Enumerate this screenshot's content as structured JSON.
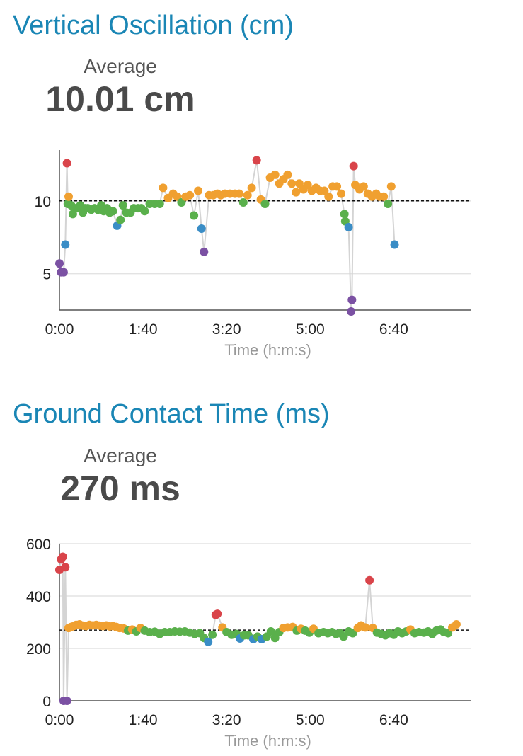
{
  "charts": [
    {
      "title": "Vertical Oscillation (cm)",
      "average_label": "Average",
      "average_value": "10.01 cm"
    },
    {
      "title": "Ground Contact Time (ms)",
      "average_label": "Average",
      "average_value": "270 ms"
    }
  ],
  "colors": {
    "title": "#1a86b5",
    "purple": "#7b51a3",
    "blue": "#3a8dc6",
    "green": "#5ab04c",
    "orange": "#f0a030",
    "red": "#d9444a",
    "line": "#d4d4d4",
    "grid": "#e3e3e3"
  },
  "chart_data": [
    {
      "type": "scatter",
      "title": "Vertical Oscillation (cm)",
      "xlabel": "Time (h:m:s)",
      "ylabel": "",
      "x_ticks": [
        "0:00",
        "1:40",
        "3:20",
        "5:00",
        "6:40"
      ],
      "x_tick_seconds": [
        0,
        100,
        200,
        300,
        400
      ],
      "y_ticks": [
        5,
        10
      ],
      "xlim": [
        0,
        492
      ],
      "ylim": [
        2.5,
        13.5
      ],
      "grid": "horizontal",
      "reference_line": 10.01,
      "x_unit": "seconds",
      "points": [
        [
          0,
          5.7,
          "purple"
        ],
        [
          2,
          5.1,
          "purple"
        ],
        [
          5,
          5.1,
          "purple"
        ],
        [
          7,
          7.0,
          "blue"
        ],
        [
          9,
          12.6,
          "red"
        ],
        [
          10,
          9.8,
          "green"
        ],
        [
          11,
          10.3,
          "orange"
        ],
        [
          14,
          9.7,
          "green"
        ],
        [
          16,
          9.1,
          "green"
        ],
        [
          19,
          9.5,
          "green"
        ],
        [
          22,
          9.5,
          "green"
        ],
        [
          25,
          9.7,
          "green"
        ],
        [
          28,
          9.2,
          "green"
        ],
        [
          31,
          9.5,
          "green"
        ],
        [
          34,
          9.5,
          "green"
        ],
        [
          38,
          9.4,
          "green"
        ],
        [
          42,
          9.5,
          "green"
        ],
        [
          46,
          9.4,
          "green"
        ],
        [
          50,
          9.7,
          "green"
        ],
        [
          53,
          9.3,
          "green"
        ],
        [
          57,
          9.5,
          "green"
        ],
        [
          60,
          9.2,
          "green"
        ],
        [
          64,
          9.3,
          "green"
        ],
        [
          69,
          8.3,
          "blue"
        ],
        [
          73,
          8.7,
          "green"
        ],
        [
          76,
          9.7,
          "green"
        ],
        [
          80,
          9.2,
          "green"
        ],
        [
          85,
          9.2,
          "green"
        ],
        [
          89,
          9.5,
          "green"
        ],
        [
          94,
          9.5,
          "green"
        ],
        [
          98,
          9.5,
          "green"
        ],
        [
          102,
          9.3,
          "green"
        ],
        [
          108,
          9.8,
          "green"
        ],
        [
          114,
          9.8,
          "green"
        ],
        [
          120,
          9.8,
          "green"
        ],
        [
          124,
          10.9,
          "orange"
        ],
        [
          130,
          10.2,
          "orange"
        ],
        [
          136,
          10.5,
          "orange"
        ],
        [
          141,
          10.3,
          "orange"
        ],
        [
          146,
          9.9,
          "green"
        ],
        [
          151,
          10.3,
          "orange"
        ],
        [
          156,
          10.4,
          "orange"
        ],
        [
          161,
          9.0,
          "green"
        ],
        [
          166,
          10.7,
          "orange"
        ],
        [
          170,
          8.1,
          "blue"
        ],
        [
          173,
          6.5,
          "purple"
        ],
        [
          179,
          10.4,
          "orange"
        ],
        [
          184,
          10.4,
          "orange"
        ],
        [
          189,
          10.5,
          "orange"
        ],
        [
          193,
          10.4,
          "orange"
        ],
        [
          198,
          10.5,
          "orange"
        ],
        [
          204,
          10.5,
          "orange"
        ],
        [
          210,
          10.5,
          "orange"
        ],
        [
          215,
          10.5,
          "orange"
        ],
        [
          220,
          9.9,
          "green"
        ],
        [
          225,
          10.4,
          "orange"
        ],
        [
          230,
          10.9,
          "orange"
        ],
        [
          236,
          12.8,
          "red"
        ],
        [
          241,
          10.1,
          "orange"
        ],
        [
          246,
          9.8,
          "green"
        ],
        [
          252,
          11.6,
          "orange"
        ],
        [
          258,
          11.8,
          "orange"
        ],
        [
          263,
          11.2,
          "orange"
        ],
        [
          268,
          11.5,
          "orange"
        ],
        [
          273,
          11.8,
          "orange"
        ],
        [
          278,
          11.2,
          "orange"
        ],
        [
          283,
          10.6,
          "orange"
        ],
        [
          287,
          11.2,
          "orange"
        ],
        [
          292,
          10.8,
          "orange"
        ],
        [
          297,
          11.1,
          "orange"
        ],
        [
          302,
          10.7,
          "orange"
        ],
        [
          307,
          10.9,
          "orange"
        ],
        [
          312,
          10.7,
          "orange"
        ],
        [
          317,
          10.7,
          "orange"
        ],
        [
          322,
          10.3,
          "orange"
        ],
        [
          327,
          11.0,
          "orange"
        ],
        [
          332,
          11.0,
          "orange"
        ],
        [
          337,
          10.5,
          "orange"
        ],
        [
          341,
          9.1,
          "green"
        ],
        [
          342,
          8.6,
          "green"
        ],
        [
          346,
          8.2,
          "blue"
        ],
        [
          349,
          2.4,
          "purple"
        ],
        [
          350,
          3.2,
          "purple"
        ],
        [
          352,
          12.4,
          "red"
        ],
        [
          354,
          11.1,
          "orange"
        ],
        [
          359,
          10.8,
          "orange"
        ],
        [
          364,
          11.0,
          "orange"
        ],
        [
          369,
          10.5,
          "orange"
        ],
        [
          374,
          10.3,
          "orange"
        ],
        [
          379,
          10.5,
          "orange"
        ],
        [
          383,
          10.3,
          "orange"
        ],
        [
          388,
          10.3,
          "orange"
        ],
        [
          393,
          9.8,
          "green"
        ],
        [
          397,
          11.0,
          "orange"
        ],
        [
          401,
          7.0,
          "blue"
        ]
      ]
    },
    {
      "type": "scatter",
      "title": "Ground Contact Time (ms)",
      "xlabel": "Time (h:m:s)",
      "ylabel": "",
      "x_ticks": [
        "0:00",
        "1:40",
        "3:20",
        "5:00",
        "6:40"
      ],
      "x_tick_seconds": [
        0,
        100,
        200,
        300,
        400
      ],
      "y_ticks": [
        0,
        200,
        400,
        600
      ],
      "xlim": [
        0,
        492
      ],
      "ylim": [
        0,
        600
      ],
      "grid": "horizontal",
      "reference_line": 270,
      "x_unit": "seconds",
      "points": [
        [
          0,
          500,
          "red"
        ],
        [
          2,
          540,
          "red"
        ],
        [
          4,
          550,
          "red"
        ],
        [
          5,
          0,
          "purple"
        ],
        [
          7,
          510,
          "red"
        ],
        [
          9,
          0,
          "purple"
        ],
        [
          11,
          278,
          "orange"
        ],
        [
          14,
          282,
          "orange"
        ],
        [
          17,
          285,
          "orange"
        ],
        [
          20,
          290,
          "orange"
        ],
        [
          24,
          292,
          "orange"
        ],
        [
          28,
          287,
          "orange"
        ],
        [
          32,
          285,
          "orange"
        ],
        [
          36,
          290,
          "orange"
        ],
        [
          40,
          288,
          "orange"
        ],
        [
          44,
          290,
          "orange"
        ],
        [
          48,
          287,
          "orange"
        ],
        [
          52,
          285,
          "orange"
        ],
        [
          56,
          288,
          "orange"
        ],
        [
          60,
          284,
          "orange"
        ],
        [
          64,
          285,
          "orange"
        ],
        [
          68,
          282,
          "orange"
        ],
        [
          72,
          278,
          "orange"
        ],
        [
          77,
          276,
          "orange"
        ],
        [
          82,
          268,
          "green"
        ],
        [
          87,
          272,
          "orange"
        ],
        [
          92,
          265,
          "green"
        ],
        [
          97,
          278,
          "orange"
        ],
        [
          102,
          268,
          "green"
        ],
        [
          108,
          262,
          "green"
        ],
        [
          114,
          264,
          "green"
        ],
        [
          120,
          255,
          "green"
        ],
        [
          126,
          262,
          "green"
        ],
        [
          132,
          262,
          "green"
        ],
        [
          138,
          265,
          "green"
        ],
        [
          144,
          264,
          "green"
        ],
        [
          150,
          265,
          "green"
        ],
        [
          156,
          260,
          "green"
        ],
        [
          162,
          255,
          "green"
        ],
        [
          168,
          258,
          "green"
        ],
        [
          173,
          240,
          "green"
        ],
        [
          178,
          225,
          "blue"
        ],
        [
          183,
          252,
          "green"
        ],
        [
          187,
          328,
          "red"
        ],
        [
          189,
          332,
          "red"
        ],
        [
          195,
          280,
          "orange"
        ],
        [
          200,
          262,
          "green"
        ],
        [
          206,
          252,
          "green"
        ],
        [
          212,
          255,
          "green"
        ],
        [
          216,
          238,
          "blue"
        ],
        [
          221,
          250,
          "green"
        ],
        [
          226,
          250,
          "green"
        ],
        [
          232,
          235,
          "blue"
        ],
        [
          237,
          245,
          "green"
        ],
        [
          242,
          235,
          "blue"
        ],
        [
          248,
          245,
          "green"
        ],
        [
          253,
          265,
          "green"
        ],
        [
          258,
          240,
          "green"
        ],
        [
          263,
          262,
          "green"
        ],
        [
          268,
          278,
          "orange"
        ],
        [
          273,
          280,
          "orange"
        ],
        [
          279,
          282,
          "orange"
        ],
        [
          284,
          268,
          "green"
        ],
        [
          289,
          275,
          "orange"
        ],
        [
          294,
          268,
          "green"
        ],
        [
          299,
          260,
          "green"
        ],
        [
          304,
          275,
          "orange"
        ],
        [
          310,
          258,
          "green"
        ],
        [
          316,
          262,
          "green"
        ],
        [
          321,
          258,
          "green"
        ],
        [
          326,
          262,
          "green"
        ],
        [
          331,
          255,
          "green"
        ],
        [
          336,
          258,
          "green"
        ],
        [
          340,
          245,
          "green"
        ],
        [
          346,
          265,
          "green"
        ],
        [
          351,
          258,
          "green"
        ],
        [
          357,
          278,
          "orange"
        ],
        [
          361,
          288,
          "orange"
        ],
        [
          366,
          280,
          "orange"
        ],
        [
          371,
          460,
          "red"
        ],
        [
          375,
          278,
          "orange"
        ],
        [
          380,
          260,
          "green"
        ],
        [
          385,
          255,
          "green"
        ],
        [
          390,
          250,
          "green"
        ],
        [
          395,
          258,
          "green"
        ],
        [
          400,
          252,
          "green"
        ],
        [
          405,
          265,
          "green"
        ],
        [
          410,
          258,
          "green"
        ],
        [
          415,
          265,
          "green"
        ],
        [
          420,
          272,
          "orange"
        ],
        [
          425,
          258,
          "green"
        ],
        [
          430,
          262,
          "green"
        ],
        [
          436,
          260,
          "green"
        ],
        [
          441,
          265,
          "green"
        ],
        [
          446,
          255,
          "green"
        ],
        [
          451,
          268,
          "green"
        ],
        [
          456,
          272,
          "green"
        ],
        [
          460,
          262,
          "green"
        ],
        [
          465,
          258,
          "green"
        ],
        [
          470,
          280,
          "orange"
        ],
        [
          475,
          292,
          "orange"
        ]
      ]
    }
  ]
}
